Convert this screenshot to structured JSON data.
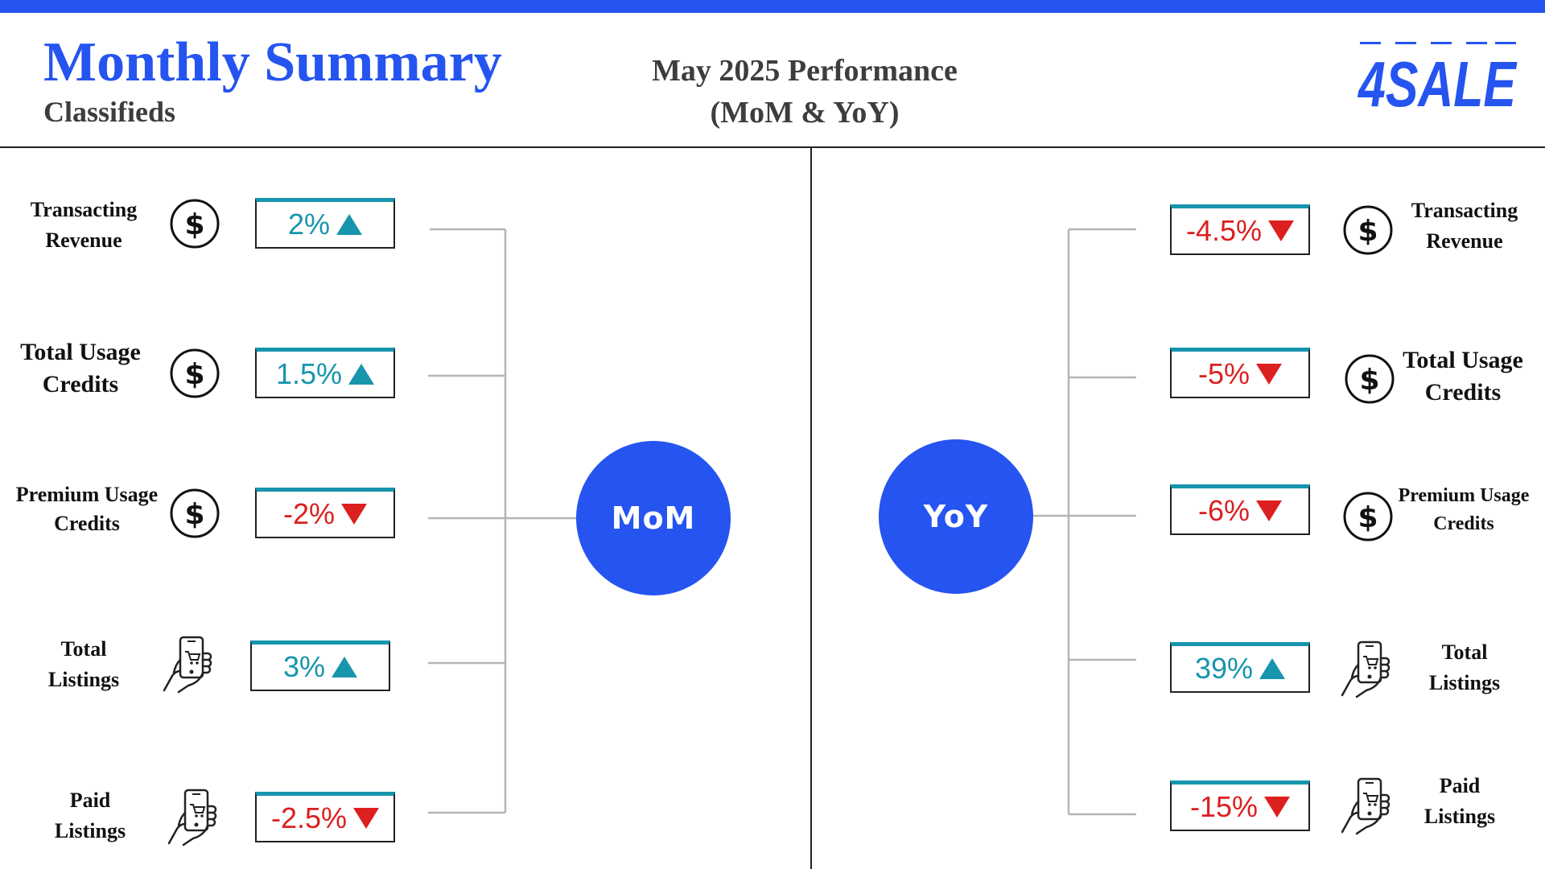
{
  "header": {
    "title": "Monthly Summary",
    "subtitle": "Classifieds",
    "period_line1": "May 2025 Performance",
    "period_line2": "(MoM & YoY)",
    "logo_text": "4SALE"
  },
  "colors": {
    "brand_blue": "#2554f0",
    "positive": "#1795ad",
    "negative": "#dc1f1f"
  },
  "mom": {
    "hub_label": "MoM",
    "metrics": [
      {
        "label_line1": "Transacting",
        "label_line2": "Revenue",
        "icon": "dollar-icon",
        "value": "2%",
        "direction": "up"
      },
      {
        "label_line1": "Total Usage",
        "label_line2": "Credits",
        "icon": "dollar-icon",
        "value": "1.5%",
        "direction": "up"
      },
      {
        "label_line1": "Premium Usage",
        "label_line2": "Credits",
        "icon": "dollar-icon",
        "value": "-2%",
        "direction": "down"
      },
      {
        "label_line1": "Total",
        "label_line2": "Listings",
        "icon": "mobile-shopping-icon",
        "value": "3%",
        "direction": "up"
      },
      {
        "label_line1": "Paid",
        "label_line2": "Listings",
        "icon": "mobile-shopping-icon",
        "value": "-2.5%",
        "direction": "down"
      }
    ]
  },
  "yoy": {
    "hub_label": "YoY",
    "metrics": [
      {
        "label_line1": "Transacting",
        "label_line2": "Revenue",
        "icon": "dollar-icon",
        "value": "-4.5%",
        "direction": "down"
      },
      {
        "label_line1": "Total Usage",
        "label_line2": "Credits",
        "icon": "dollar-icon",
        "value": "-5%",
        "direction": "down"
      },
      {
        "label_line1": "Premium Usage",
        "label_line2": "Credits",
        "icon": "dollar-icon",
        "value": "-6%",
        "direction": "down"
      },
      {
        "label_line1": "Total",
        "label_line2": "Listings",
        "icon": "mobile-shopping-icon",
        "value": "39%",
        "direction": "up"
      },
      {
        "label_line1": "Paid",
        "label_line2": "Listings",
        "icon": "mobile-shopping-icon",
        "value": "-15%",
        "direction": "down"
      }
    ]
  }
}
